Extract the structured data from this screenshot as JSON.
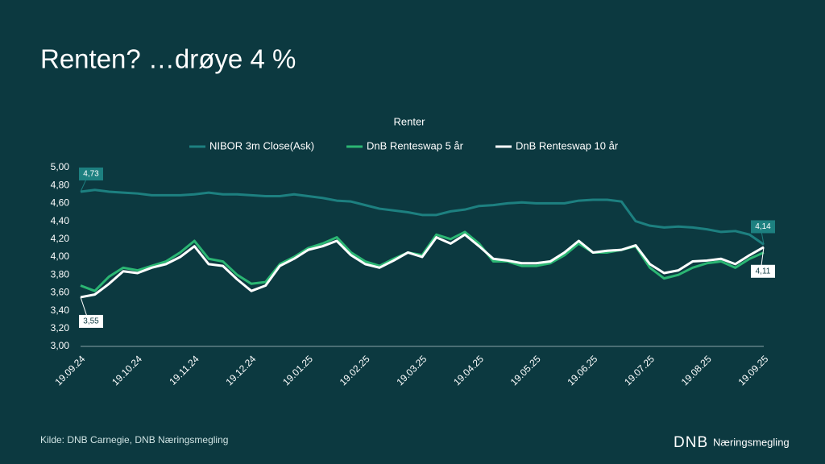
{
  "slide": {
    "title": "Renten? …drøye 4 %",
    "source": "Kilde: DNB Carnegie, DNB Næringsmegling",
    "logo": "DNB",
    "logo_text": "Næringsmegling"
  },
  "chart_data": {
    "type": "line",
    "title": "Renter",
    "grid": false,
    "legend": "top",
    "categories": [
      "19.09.24",
      null,
      null,
      null,
      "19.10.24",
      null,
      null,
      null,
      "19.11.24",
      null,
      null,
      null,
      "19.12.24",
      null,
      null,
      null,
      "19.01.25",
      null,
      null,
      null,
      "19.02.25",
      null,
      null,
      null,
      "19.03.25",
      null,
      null,
      null,
      "19.04.25",
      null,
      null,
      null,
      "19.05.25",
      null,
      null,
      null,
      "19.06.25",
      null,
      null,
      null,
      "19.07.25",
      null,
      null,
      null,
      "19.08.25",
      null,
      null,
      null,
      "19.09.25"
    ],
    "ylim": [
      3,
      5
    ],
    "yticks": [
      {
        "value": 3,
        "label": "3,00"
      },
      {
        "value": 3.2,
        "label": "3,20"
      },
      {
        "value": 3.4,
        "label": "3,40"
      },
      {
        "value": 3.6,
        "label": "3,60"
      },
      {
        "value": 3.8,
        "label": "3,80"
      },
      {
        "value": 4,
        "label": "4,00"
      },
      {
        "value": 4.2,
        "label": "4,20"
      },
      {
        "value": 4.4,
        "label": "4,40"
      },
      {
        "value": 4.6,
        "label": "4,60"
      },
      {
        "value": 4.8,
        "label": "4,80"
      },
      {
        "value": 5,
        "label": "5,00"
      }
    ],
    "series": [
      {
        "name": "NIBOR 3m Close(Ask)",
        "color": "#1d8080",
        "values": [
          4.73,
          4.75,
          4.73,
          4.72,
          4.71,
          4.69,
          4.69,
          4.69,
          4.7,
          4.72,
          4.7,
          4.7,
          4.69,
          4.68,
          4.68,
          4.7,
          4.68,
          4.66,
          4.63,
          4.62,
          4.58,
          4.54,
          4.52,
          4.5,
          4.47,
          4.47,
          4.51,
          4.53,
          4.57,
          4.58,
          4.6,
          4.61,
          4.6,
          4.6,
          4.6,
          4.63,
          4.64,
          4.64,
          4.62,
          4.4,
          4.35,
          4.33,
          4.34,
          4.33,
          4.31,
          4.28,
          4.29,
          4.25,
          4.14
        ],
        "value_labels": [
          "4,73",
          null,
          null,
          null,
          null,
          null,
          null,
          null,
          null,
          null,
          null,
          null,
          null,
          null,
          null,
          null,
          null,
          null,
          null,
          null,
          null,
          null,
          null,
          null,
          null,
          null,
          null,
          null,
          null,
          null,
          null,
          null,
          null,
          null,
          null,
          null,
          null,
          null,
          null,
          null,
          null,
          null,
          null,
          null,
          null,
          null,
          null,
          null,
          "4,14"
        ]
      },
      {
        "name": "DnB Renteswap 5 år",
        "color": "#2bb673",
        "values": [
          3.68,
          3.62,
          3.78,
          3.88,
          3.85,
          3.9,
          3.95,
          4.05,
          4.18,
          3.98,
          3.95,
          3.8,
          3.7,
          3.72,
          3.92,
          4.0,
          4.1,
          4.15,
          4.22,
          4.05,
          3.95,
          3.9,
          3.98,
          4.05,
          4.02,
          4.25,
          4.2,
          4.28,
          4.15,
          3.95,
          3.95,
          3.9,
          3.9,
          3.93,
          4.02,
          4.15,
          4.05,
          4.05,
          4.08,
          4.12,
          3.88,
          3.76,
          3.8,
          3.88,
          3.93,
          3.95,
          3.88,
          3.98,
          4.05
        ]
      },
      {
        "name": "DnB Renteswap 10 år",
        "color": "#ffffff",
        "values": [
          3.55,
          3.58,
          3.7,
          3.84,
          3.82,
          3.88,
          3.92,
          4.0,
          4.12,
          3.92,
          3.9,
          3.75,
          3.62,
          3.68,
          3.9,
          3.98,
          4.08,
          4.12,
          4.18,
          4.02,
          3.92,
          3.88,
          3.96,
          4.05,
          4.0,
          4.22,
          4.15,
          4.25,
          4.12,
          3.98,
          3.96,
          3.93,
          3.93,
          3.95,
          4.05,
          4.18,
          4.05,
          4.07,
          4.08,
          4.13,
          3.92,
          3.82,
          3.85,
          3.95,
          3.96,
          3.98,
          3.92,
          4.02,
          4.11
        ],
        "value_labels": [
          "3,55",
          null,
          null,
          null,
          null,
          null,
          null,
          null,
          null,
          null,
          null,
          null,
          null,
          null,
          null,
          null,
          null,
          null,
          null,
          null,
          null,
          null,
          null,
          null,
          null,
          null,
          null,
          null,
          null,
          null,
          null,
          null,
          null,
          null,
          null,
          null,
          null,
          null,
          null,
          null,
          null,
          null,
          null,
          null,
          null,
          null,
          null,
          null,
          "4,11"
        ]
      }
    ]
  }
}
